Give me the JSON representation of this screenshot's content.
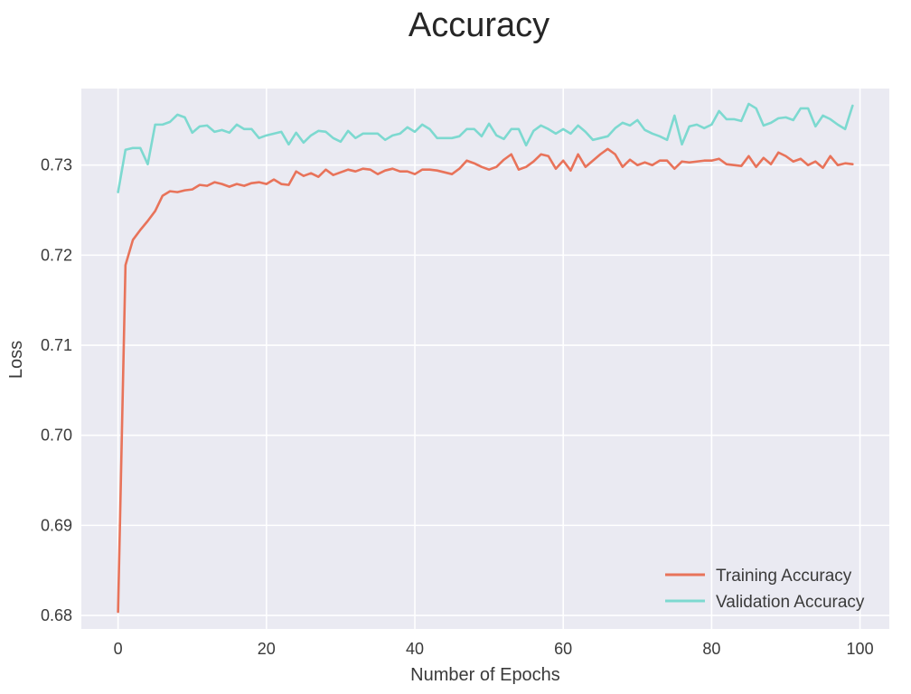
{
  "chart_data": {
    "type": "line",
    "title": "Accuracy",
    "xlabel": "Number of Epochs",
    "ylabel": "Loss",
    "xlim": [
      -4.95,
      103.95
    ],
    "ylim": [
      0.6785,
      0.7385
    ],
    "xticks": [
      0,
      20,
      40,
      60,
      80,
      100
    ],
    "yticks": [
      0.68,
      0.69,
      0.7,
      0.71,
      0.72,
      0.73
    ],
    "ytick_labels": [
      "0.68",
      "0.69",
      "0.70",
      "0.71",
      "0.72",
      "0.73"
    ],
    "grid": true,
    "legend_position": "bottom-right",
    "colors": {
      "background": "#EAEAF2",
      "grid": "#FFFFFF",
      "training": "#E8735A",
      "validation": "#7DD9D0"
    },
    "series": [
      {
        "name": "Training Accuracy",
        "color_key": "training",
        "values": [
          0.6804,
          0.7189,
          0.7217,
          0.7228,
          0.7238,
          0.7249,
          0.7266,
          0.7271,
          0.727,
          0.7272,
          0.7273,
          0.7278,
          0.7277,
          0.7281,
          0.7279,
          0.7276,
          0.7279,
          0.7277,
          0.728,
          0.7281,
          0.7279,
          0.7284,
          0.7279,
          0.7278,
          0.7293,
          0.7288,
          0.7291,
          0.7287,
          0.7295,
          0.7289,
          0.7292,
          0.7295,
          0.7293,
          0.7296,
          0.7295,
          0.729,
          0.7294,
          0.7296,
          0.7293,
          0.7293,
          0.729,
          0.7295,
          0.7295,
          0.7294,
          0.7292,
          0.729,
          0.7296,
          0.7305,
          0.7302,
          0.7298,
          0.7295,
          0.7298,
          0.7306,
          0.7312,
          0.7295,
          0.7298,
          0.7304,
          0.7312,
          0.731,
          0.7296,
          0.7305,
          0.7294,
          0.7312,
          0.7298,
          0.7305,
          0.7312,
          0.7318,
          0.7312,
          0.7298,
          0.7306,
          0.73,
          0.7303,
          0.73,
          0.7305,
          0.7305,
          0.7296,
          0.7304,
          0.7303,
          0.7304,
          0.7305,
          0.7305,
          0.7307,
          0.7301,
          0.73,
          0.7299,
          0.731,
          0.7298,
          0.7308,
          0.7301,
          0.7314,
          0.731,
          0.7304,
          0.7307,
          0.73,
          0.7304,
          0.7297,
          0.731,
          0.73,
          0.7302,
          0.7301
        ]
      },
      {
        "name": "Validation Accuracy",
        "color_key": "validation",
        "values": [
          0.727,
          0.7317,
          0.7319,
          0.7319,
          0.7301,
          0.7345,
          0.7345,
          0.7348,
          0.7356,
          0.7353,
          0.7336,
          0.7343,
          0.7344,
          0.7337,
          0.7339,
          0.7336,
          0.7345,
          0.734,
          0.734,
          0.733,
          0.7333,
          0.7335,
          0.7337,
          0.7323,
          0.7336,
          0.7325,
          0.7333,
          0.7338,
          0.7337,
          0.733,
          0.7326,
          0.7338,
          0.733,
          0.7335,
          0.7335,
          0.7335,
          0.7328,
          0.7333,
          0.7335,
          0.7342,
          0.7337,
          0.7345,
          0.734,
          0.733,
          0.733,
          0.733,
          0.7332,
          0.734,
          0.734,
          0.7332,
          0.7346,
          0.7333,
          0.7329,
          0.734,
          0.734,
          0.7322,
          0.7338,
          0.7344,
          0.734,
          0.7335,
          0.734,
          0.7335,
          0.7344,
          0.7337,
          0.7328,
          0.733,
          0.7332,
          0.7341,
          0.7347,
          0.7344,
          0.735,
          0.7339,
          0.7335,
          0.7332,
          0.7328,
          0.7355,
          0.7323,
          0.7343,
          0.7345,
          0.7341,
          0.7345,
          0.736,
          0.7351,
          0.7351,
          0.7349,
          0.7368,
          0.7363,
          0.7344,
          0.7347,
          0.7352,
          0.7353,
          0.735,
          0.7363,
          0.7363,
          0.7343,
          0.7355,
          0.7351,
          0.7345,
          0.734,
          0.7366
        ]
      }
    ]
  }
}
